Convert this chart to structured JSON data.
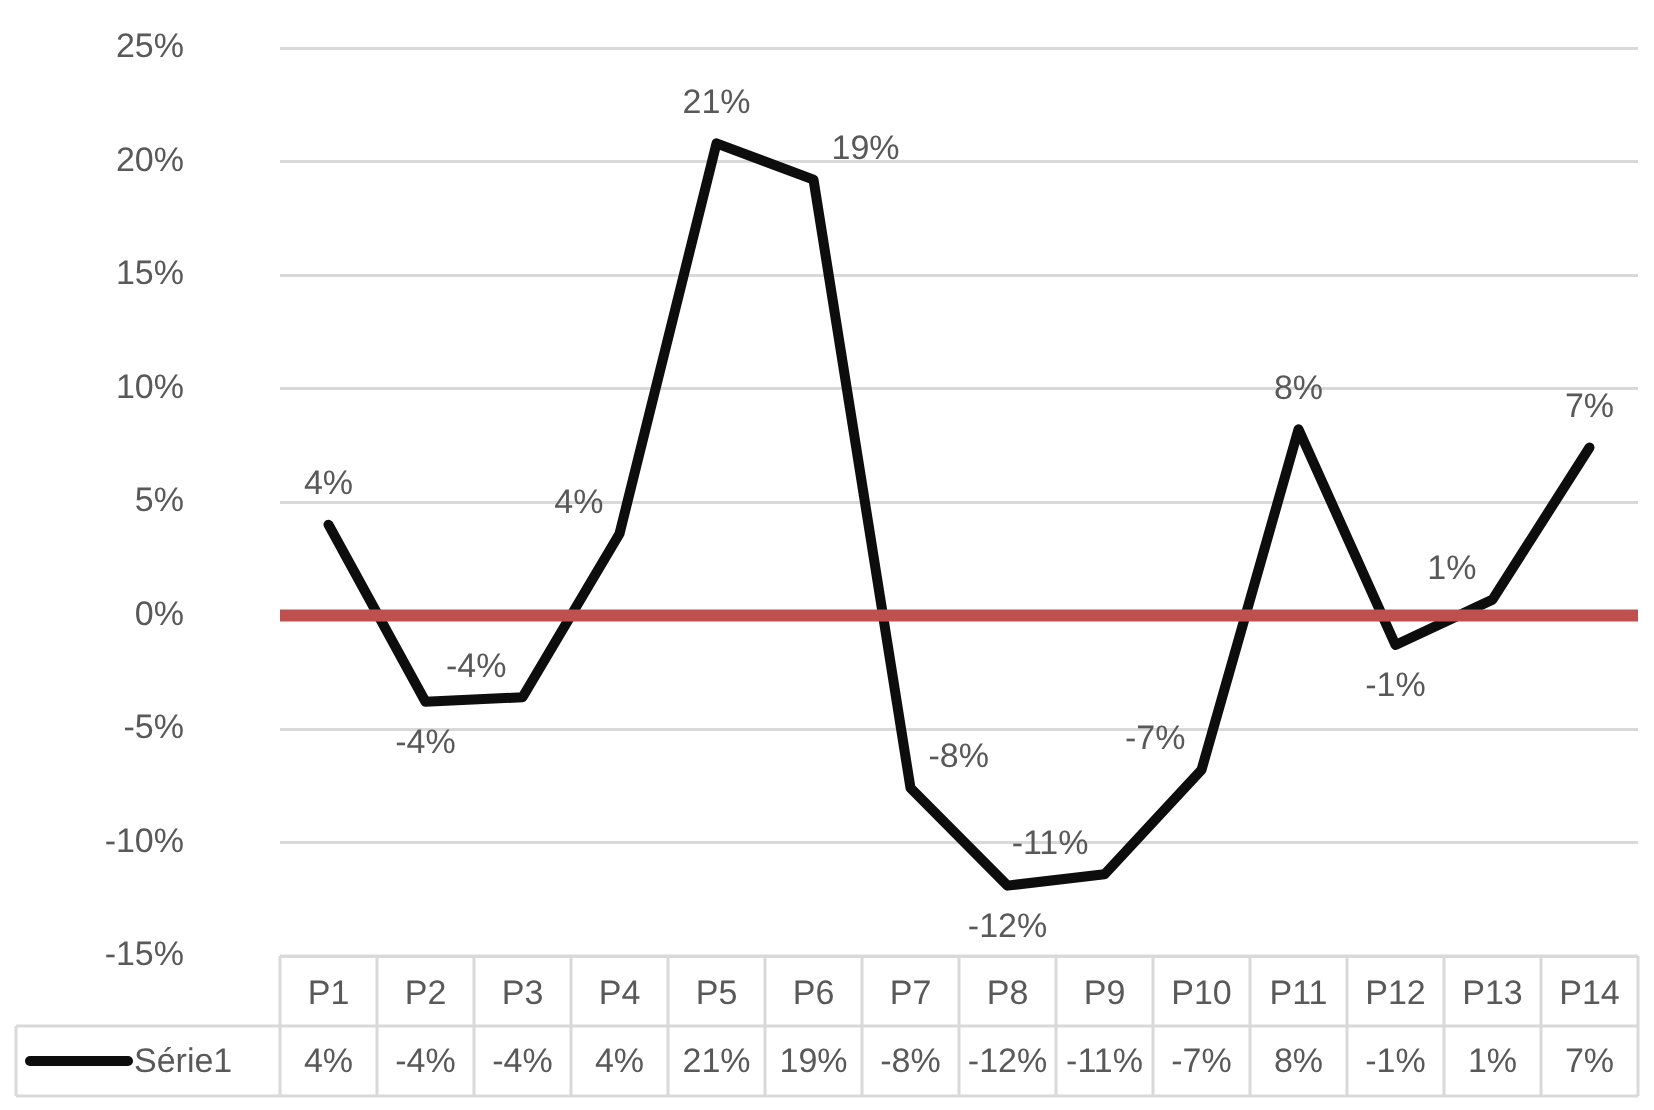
{
  "chart_data": {
    "type": "line",
    "categories": [
      "P1",
      "P2",
      "P3",
      "P4",
      "P5",
      "P6",
      "P7",
      "P8",
      "P9",
      "P10",
      "P11",
      "P12",
      "P13",
      "P14"
    ],
    "series": [
      {
        "name": "Série1",
        "color": "#0d0d0d",
        "values": [
          4.0,
          -3.8,
          -3.6,
          3.6,
          20.8,
          19.2,
          -7.6,
          -11.9,
          -11.4,
          -6.8,
          8.2,
          -1.3,
          0.7,
          7.4
        ],
        "value_labels": [
          "4%",
          "-4%",
          "-4%",
          "4%",
          "21%",
          "19%",
          "-8%",
          "-12%",
          "-11%",
          "-7%",
          "8%",
          "-1%",
          "1%",
          "7%"
        ]
      }
    ],
    "ylim": [
      -15,
      25
    ],
    "yticks": [
      {
        "value": -15,
        "label": "-15%"
      },
      {
        "value": -10,
        "label": "-10%"
      },
      {
        "value": -5,
        "label": "-5%"
      },
      {
        "value": 0,
        "label": "0%"
      },
      {
        "value": 5,
        "label": "5%"
      },
      {
        "value": 10,
        "label": "10%"
      },
      {
        "value": 15,
        "label": "15%"
      },
      {
        "value": 20,
        "label": "20%"
      },
      {
        "value": 25,
        "label": "25%"
      }
    ],
    "ref_lines": [
      {
        "axis": "y",
        "value": 0,
        "color": "#c0504d"
      }
    ],
    "grid": "y",
    "legend": "bottom left",
    "marker": "none"
  }
}
